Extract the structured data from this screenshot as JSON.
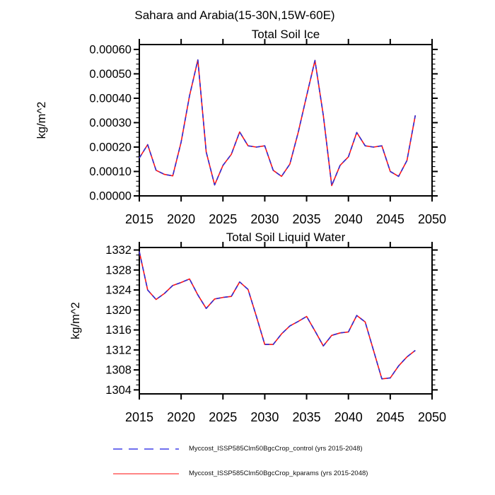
{
  "page": {
    "background": "#ffffff",
    "main_title": "Sahara and Arabia(15-30N,15W-60E)"
  },
  "colors": {
    "frame": "#000000",
    "control_blue": "#2d2dd6",
    "kparams_red": "#ff1414",
    "legend_control_blue": "#7070ee",
    "legend_kparams_red": "#ff8585",
    "text": "#000000"
  },
  "legend": {
    "position": "bottom",
    "items": [
      {
        "label": "Myccost_ISSP585Clm50BgcCrop_control (yrs 2015-2048)",
        "style": "dashed",
        "color": "#7070ee"
      },
      {
        "label": "Myccost_ISSP585Clm50BgcCrop_kparams (yrs 2015-2048)",
        "style": "solid",
        "color": "#ff8585"
      }
    ]
  },
  "chart_data": [
    {
      "type": "line",
      "title": "Total Soil Ice",
      "ylabel": "kg/m^2",
      "xlabel": "",
      "grid": false,
      "xlim": [
        2015,
        2050
      ],
      "ylim": [
        0,
        0.00062
      ],
      "xticks": {
        "major_step": 5,
        "labels": [
          "2015",
          "2020",
          "2025",
          "2030",
          "2035",
          "2040",
          "2045",
          "2050"
        ],
        "values": [
          2015,
          2020,
          2025,
          2030,
          2035,
          2040,
          2045,
          2050
        ]
      },
      "yticks": {
        "labels": [
          "0.00000",
          "0.00010",
          "0.00020",
          "0.00030",
          "0.00040",
          "0.00050",
          "0.00060"
        ],
        "values": [
          0,
          0.0001,
          0.0002,
          0.0003,
          0.0004,
          0.0005,
          0.0006
        ],
        "minor_step": 2e-05
      },
      "x": [
        2015,
        2016,
        2017,
        2018,
        2019,
        2020,
        2021,
        2022,
        2023,
        2024,
        2025,
        2026,
        2027,
        2028,
        2029,
        2030,
        2031,
        2032,
        2033,
        2034,
        2035,
        2036,
        2037,
        2038,
        2039,
        2040,
        2041,
        2042,
        2043,
        2044,
        2045,
        2046,
        2047,
        2048
      ],
      "series": [
        {
          "name": "Myccost_ISSP585Clm50BgcCrop_control",
          "line": "dashed",
          "color": "#2d2dd6",
          "values": [
            0.000155,
            0.00021,
            0.000105,
            8.8e-05,
            8.2e-05,
            0.00022,
            0.00041,
            0.000557,
            0.00018,
            4.5e-05,
            0.000125,
            0.00017,
            0.000262,
            0.000205,
            0.0002,
            0.000205,
            0.000105,
            8e-05,
            0.00013,
            0.00026,
            0.00041,
            0.000555,
            0.00033,
            4.2e-05,
            0.000125,
            0.00016,
            0.00026,
            0.000205,
            0.0002,
            0.000205,
            0.0001,
            8e-05,
            0.000145,
            0.00033
          ]
        },
        {
          "name": "Myccost_ISSP585Clm50BgcCrop_kparams",
          "line": "solid",
          "color": "#ff1414",
          "values": [
            0.000155,
            0.00021,
            0.000105,
            8.8e-05,
            8.2e-05,
            0.00022,
            0.00041,
            0.000557,
            0.00018,
            4.5e-05,
            0.000125,
            0.00017,
            0.000262,
            0.000205,
            0.0002,
            0.000205,
            0.000105,
            8e-05,
            0.00013,
            0.00026,
            0.00041,
            0.000555,
            0.00033,
            4.2e-05,
            0.000125,
            0.00016,
            0.00026,
            0.000205,
            0.0002,
            0.000205,
            0.0001,
            8e-05,
            0.000145,
            0.00033
          ]
        }
      ]
    },
    {
      "type": "line",
      "title": "Total Soil Liquid Water",
      "ylabel": "kg/m^2",
      "xlabel": "",
      "grid": false,
      "xlim": [
        2015,
        2050
      ],
      "ylim": [
        1303.2,
        1332.5
      ],
      "xticks": {
        "major_step": 5,
        "labels": [
          "2015",
          "2020",
          "2025",
          "2030",
          "2035",
          "2040",
          "2045",
          "2050"
        ],
        "values": [
          2015,
          2020,
          2025,
          2030,
          2035,
          2040,
          2045,
          2050
        ]
      },
      "yticks": {
        "labels": [
          "1304",
          "1308",
          "1312",
          "1316",
          "1320",
          "1324",
          "1328",
          "1332"
        ],
        "values": [
          1304,
          1308,
          1312,
          1316,
          1320,
          1324,
          1328,
          1332
        ],
        "minor_step": 1
      },
      "x": [
        2015,
        2016,
        2017,
        2018,
        2019,
        2020,
        2021,
        2022,
        2023,
        2024,
        2025,
        2026,
        2027,
        2028,
        2029,
        2030,
        2031,
        2032,
        2033,
        2034,
        2035,
        2036,
        2037,
        2038,
        2039,
        2040,
        2041,
        2042,
        2043,
        2044,
        2045,
        2046,
        2047,
        2048
      ],
      "series": [
        {
          "name": "Myccost_ISSP585Clm50BgcCrop_control",
          "line": "dashed",
          "color": "#2d2dd6",
          "values": [
            1331.7,
            1324.0,
            1322.1,
            1323.3,
            1324.9,
            1325.5,
            1326.2,
            1323.0,
            1320.3,
            1322.2,
            1322.5,
            1322.7,
            1325.6,
            1324.1,
            1318.7,
            1313.1,
            1313.1,
            1315.2,
            1316.8,
            1317.7,
            1318.7,
            1315.8,
            1312.8,
            1314.9,
            1315.4,
            1315.6,
            1318.9,
            1317.6,
            1311.9,
            1306.2,
            1306.4,
            1308.8,
            1310.6,
            1311.9
          ]
        },
        {
          "name": "Myccost_ISSP585Clm50BgcCrop_kparams",
          "line": "solid",
          "color": "#ff1414",
          "values": [
            1331.7,
            1324.0,
            1322.1,
            1323.3,
            1324.9,
            1325.5,
            1326.2,
            1323.0,
            1320.3,
            1322.2,
            1322.5,
            1322.7,
            1325.6,
            1324.1,
            1318.7,
            1313.1,
            1313.1,
            1315.2,
            1316.8,
            1317.7,
            1318.7,
            1315.8,
            1312.8,
            1314.9,
            1315.4,
            1315.6,
            1318.9,
            1317.6,
            1311.9,
            1306.2,
            1306.4,
            1308.8,
            1310.6,
            1311.9
          ]
        }
      ]
    }
  ]
}
